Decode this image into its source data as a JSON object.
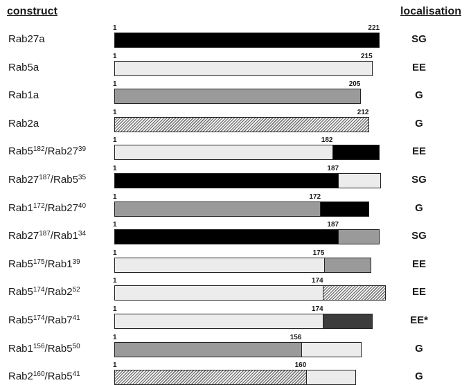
{
  "header": {
    "construct": "construct",
    "localisation": "localisation"
  },
  "start_label": "1",
  "rows": [
    {
      "label": [
        {
          "t": "Rab27a"
        }
      ],
      "segments": [
        {
          "end": 221,
          "fill": "black"
        }
      ],
      "labels": [
        "221"
      ],
      "loc": "SG"
    },
    {
      "label": [
        {
          "t": "Rab5a"
        }
      ],
      "segments": [
        {
          "end": 215,
          "fill": "light"
        }
      ],
      "labels": [
        "215"
      ],
      "loc": "EE"
    },
    {
      "label": [
        {
          "t": "Rab1a"
        }
      ],
      "segments": [
        {
          "end": 205,
          "fill": "gray"
        }
      ],
      "labels": [
        "205"
      ],
      "loc": "G"
    },
    {
      "label": [
        {
          "t": "Rab2a"
        }
      ],
      "segments": [
        {
          "end": 212,
          "fill": "hatch"
        }
      ],
      "labels": [
        "212"
      ],
      "loc": "G"
    },
    {
      "label": [
        {
          "t": "Rab5"
        },
        {
          "s": "182"
        },
        {
          "t": "/Rab27"
        },
        {
          "s": "39"
        }
      ],
      "segments": [
        {
          "end": 182,
          "fill": "light"
        },
        {
          "end": 221,
          "fill": "black"
        }
      ],
      "labels": [
        "182"
      ],
      "loc": "EE"
    },
    {
      "label": [
        {
          "t": "Rab27"
        },
        {
          "s": "187"
        },
        {
          "t": "/Rab5"
        },
        {
          "s": "35"
        }
      ],
      "segments": [
        {
          "end": 187,
          "fill": "black"
        },
        {
          "end": 222,
          "fill": "light"
        }
      ],
      "labels": [
        "187"
      ],
      "loc": "SG"
    },
    {
      "label": [
        {
          "t": "Rab1"
        },
        {
          "s": "172"
        },
        {
          "t": "/Rab27"
        },
        {
          "s": "40"
        }
      ],
      "segments": [
        {
          "end": 172,
          "fill": "gray"
        },
        {
          "end": 212,
          "fill": "black"
        }
      ],
      "labels": [
        "172"
      ],
      "loc": "G"
    },
    {
      "label": [
        {
          "t": "Rab27"
        },
        {
          "s": "187"
        },
        {
          "t": "/Rab1"
        },
        {
          "s": "34"
        }
      ],
      "segments": [
        {
          "end": 187,
          "fill": "black"
        },
        {
          "end": 221,
          "fill": "gray"
        }
      ],
      "labels": [
        "187"
      ],
      "loc": "SG"
    },
    {
      "label": [
        {
          "t": "Rab5"
        },
        {
          "s": "175"
        },
        {
          "t": "/Rab1"
        },
        {
          "s": "39"
        }
      ],
      "segments": [
        {
          "end": 175,
          "fill": "light"
        },
        {
          "end": 214,
          "fill": "gray"
        }
      ],
      "labels": [
        "175"
      ],
      "loc": "EE"
    },
    {
      "label": [
        {
          "t": "Rab5"
        },
        {
          "s": "174"
        },
        {
          "t": "/Rab2"
        },
        {
          "s": "52"
        }
      ],
      "segments": [
        {
          "end": 174,
          "fill": "light"
        },
        {
          "end": 226,
          "fill": "hatch"
        }
      ],
      "labels": [
        "174"
      ],
      "loc": "EE"
    },
    {
      "label": [
        {
          "t": "Rab5"
        },
        {
          "s": "174"
        },
        {
          "t": "/Rab7"
        },
        {
          "s": "41"
        }
      ],
      "segments": [
        {
          "end": 174,
          "fill": "light"
        },
        {
          "end": 215,
          "fill": "dark"
        }
      ],
      "labels": [
        "174"
      ],
      "loc": "EE*"
    },
    {
      "label": [
        {
          "t": "Rab1"
        },
        {
          "s": "156"
        },
        {
          "t": "/Rab5"
        },
        {
          "s": "50"
        }
      ],
      "segments": [
        {
          "end": 156,
          "fill": "gray"
        },
        {
          "end": 206,
          "fill": "light"
        }
      ],
      "labels": [
        "156"
      ],
      "loc": "G"
    },
    {
      "label": [
        {
          "t": "Rab2"
        },
        {
          "s": "160"
        },
        {
          "t": "/Rab5"
        },
        {
          "s": "41"
        }
      ],
      "segments": [
        {
          "end": 160,
          "fill": "hatch"
        },
        {
          "end": 201,
          "fill": "light"
        }
      ],
      "labels": [
        "160"
      ],
      "loc": "G"
    }
  ]
}
